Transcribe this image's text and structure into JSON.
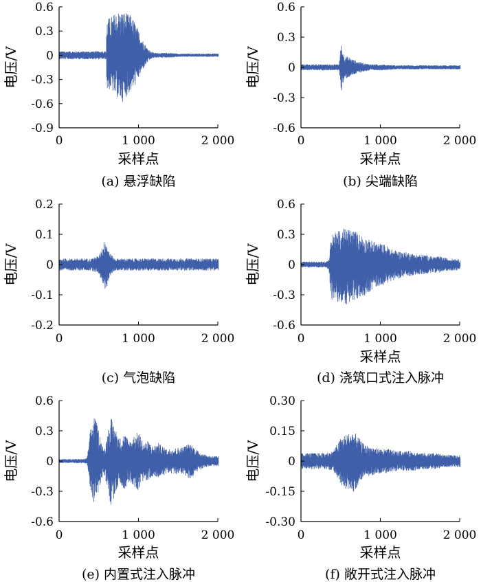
{
  "chart_data": [
    {
      "id": "a",
      "type": "line",
      "caption": "(a)  悬浮缺陷",
      "xlabel": "采样点",
      "ylabel": "电压/V",
      "xlim": [
        0,
        2000
      ],
      "ylim": [
        -0.9,
        0.6
      ],
      "xticks": [
        0,
        1000,
        2000
      ],
      "xtick_labels": [
        "0",
        "1 000",
        "2 000"
      ],
      "yticks": [
        0.6,
        0.3,
        0,
        -0.3,
        -0.6,
        -0.9
      ],
      "ytick_labels": [
        "0.6",
        "0.3",
        "0",
        "-0.3",
        "-0.6",
        "-0.9"
      ],
      "color": "#3f5fa8",
      "series": [
        {
          "x": [
            0,
            100,
            200,
            300,
            400,
            500,
            590,
            600,
            650,
            700,
            750,
            800,
            850,
            900,
            950,
            1000,
            1050,
            1100,
            1150,
            1200,
            1300,
            1400,
            1500,
            1600,
            1700,
            1800,
            1900,
            2000
          ],
          "ymax": [
            0.05,
            0.05,
            0.05,
            0.05,
            0.05,
            0.05,
            0.05,
            0.45,
            0.48,
            0.52,
            0.55,
            0.54,
            0.52,
            0.5,
            0.42,
            0.3,
            0.2,
            0.1,
            0.05,
            0.03,
            0.03,
            0.03,
            0.02,
            0.02,
            0.02,
            0.02,
            0.02,
            0.02
          ],
          "ymin": [
            -0.05,
            -0.05,
            -0.05,
            -0.05,
            -0.05,
            -0.05,
            -0.05,
            -0.45,
            -0.42,
            -0.5,
            -0.55,
            -0.58,
            -0.5,
            -0.45,
            -0.38,
            -0.28,
            -0.18,
            -0.1,
            -0.05,
            -0.03,
            -0.03,
            -0.03,
            -0.02,
            -0.02,
            -0.02,
            -0.02,
            -0.02,
            -0.02
          ]
        }
      ]
    },
    {
      "id": "b",
      "type": "line",
      "caption": "(b)  尖端缺陷",
      "xlabel": "采样点",
      "ylabel": "电压/V",
      "xlim": [
        0,
        2000
      ],
      "ylim": [
        -0.6,
        0.6
      ],
      "xticks": [
        0,
        1000,
        2000
      ],
      "xtick_labels": [
        "0",
        "1 000",
        "2 000"
      ],
      "yticks": [
        0.6,
        0.3,
        0,
        -0.3,
        -0.6
      ],
      "ytick_labels": [
        "0.6",
        "0.3",
        "0",
        "-0.3",
        "-0.6"
      ],
      "color": "#3f5fa8",
      "series": [
        {
          "x": [
            0,
            100,
            200,
            300,
            400,
            480,
            500,
            520,
            550,
            600,
            650,
            700,
            750,
            800,
            900,
            1000,
            1200,
            1400,
            1600,
            1800,
            2000
          ],
          "ymax": [
            0.03,
            0.03,
            0.03,
            0.03,
            0.03,
            0.03,
            0.24,
            0.17,
            0.12,
            0.1,
            0.08,
            0.06,
            0.05,
            0.04,
            0.03,
            0.03,
            0.02,
            0.02,
            0.02,
            0.02,
            0.02
          ],
          "ymin": [
            -0.03,
            -0.03,
            -0.03,
            -0.03,
            -0.03,
            -0.03,
            -0.26,
            -0.18,
            -0.12,
            -0.1,
            -0.08,
            -0.06,
            -0.05,
            -0.04,
            -0.03,
            -0.03,
            -0.02,
            -0.02,
            -0.02,
            -0.02,
            -0.02
          ]
        }
      ]
    },
    {
      "id": "c",
      "type": "line",
      "caption": "(c)  气泡缺陷",
      "xlabel": "",
      "ylabel": "电压/V",
      "xlim": [
        0,
        2000
      ],
      "ylim": [
        -0.2,
        0.2
      ],
      "xticks": [
        0,
        1000,
        2000
      ],
      "xtick_labels": [
        "0",
        "1 000",
        "2 000"
      ],
      "yticks": [
        0.2,
        0.1,
        0,
        -0.1,
        -0.2
      ],
      "ytick_labels": [
        "0.2",
        "0.1",
        "0",
        "-0.1",
        "-0.2"
      ],
      "color": "#3f5fa8",
      "series": [
        {
          "x": [
            0,
            100,
            200,
            300,
            400,
            500,
            540,
            580,
            620,
            660,
            700,
            800,
            900,
            1000,
            1200,
            1400,
            1600,
            1800,
            2000
          ],
          "ymax": [
            0.02,
            0.02,
            0.02,
            0.02,
            0.02,
            0.03,
            0.06,
            0.09,
            0.05,
            0.03,
            0.02,
            0.02,
            0.02,
            0.02,
            0.02,
            0.02,
            0.02,
            0.02,
            0.02
          ],
          "ymin": [
            -0.02,
            -0.02,
            -0.02,
            -0.02,
            -0.02,
            -0.03,
            -0.06,
            -0.09,
            -0.05,
            -0.03,
            -0.02,
            -0.02,
            -0.02,
            -0.02,
            -0.02,
            -0.02,
            -0.02,
            -0.02,
            -0.02
          ]
        }
      ]
    },
    {
      "id": "d",
      "type": "line",
      "caption": "(d)  浇筑口式注入脉冲",
      "xlabel": "采样点",
      "ylabel": "电压/V",
      "xlim": [
        0,
        2000
      ],
      "ylim": [
        -0.6,
        0.6
      ],
      "xticks": [
        0,
        1000,
        2000
      ],
      "xtick_labels": [
        "0",
        "1 000",
        "2 000"
      ],
      "yticks": [
        0.6,
        0.3,
        0,
        -0.3,
        -0.6
      ],
      "ytick_labels": [
        "0.6",
        "0.3",
        "0",
        "-0.3",
        "-0.6"
      ],
      "color": "#3f5fa8",
      "series": [
        {
          "x": [
            0,
            100,
            200,
            300,
            350,
            380,
            450,
            550,
            650,
            750,
            850,
            950,
            1050,
            1150,
            1250,
            1350,
            1450,
            1550,
            1650,
            1750,
            1850,
            1950,
            2000
          ],
          "ymax": [
            0.03,
            0.03,
            0.03,
            0.03,
            0.05,
            0.3,
            0.33,
            0.36,
            0.35,
            0.3,
            0.25,
            0.22,
            0.2,
            0.15,
            0.13,
            0.12,
            0.1,
            0.1,
            0.08,
            0.08,
            0.06,
            0.06,
            0.05
          ],
          "ymin": [
            -0.03,
            -0.03,
            -0.03,
            -0.03,
            -0.05,
            -0.35,
            -0.38,
            -0.4,
            -0.38,
            -0.33,
            -0.28,
            -0.22,
            -0.2,
            -0.16,
            -0.13,
            -0.12,
            -0.1,
            -0.1,
            -0.08,
            -0.08,
            -0.06,
            -0.06,
            -0.05
          ]
        }
      ]
    },
    {
      "id": "e",
      "type": "line",
      "caption": "(e)  内置式注入脉冲",
      "xlabel": "采样点",
      "ylabel": "电压/V",
      "xlim": [
        0,
        2000
      ],
      "ylim": [
        -0.6,
        0.6
      ],
      "xticks": [
        0,
        1000,
        2000
      ],
      "xtick_labels": [
        "0",
        "1 000",
        "2 000"
      ],
      "yticks": [
        0.6,
        0.3,
        0,
        -0.3,
        -0.6
      ],
      "ytick_labels": [
        "0.6",
        "0.3",
        "0",
        "-0.3",
        "-0.6"
      ],
      "color": "#3f5fa8",
      "series": [
        {
          "x": [
            0,
            100,
            200,
            300,
            350,
            400,
            440,
            500,
            560,
            600,
            650,
            700,
            760,
            820,
            880,
            940,
            1000,
            1060,
            1120,
            1180,
            1250,
            1350,
            1450,
            1550,
            1650,
            1750,
            1850,
            1950,
            2000
          ],
          "ymax": [
            0.02,
            0.02,
            0.02,
            0.02,
            0.03,
            0.35,
            0.45,
            0.3,
            0.1,
            0.25,
            0.43,
            0.35,
            0.22,
            0.28,
            0.2,
            0.25,
            0.3,
            0.18,
            0.2,
            0.15,
            0.18,
            0.12,
            0.13,
            0.14,
            0.18,
            0.1,
            0.06,
            0.05,
            0.05
          ],
          "ymin": [
            -0.02,
            -0.02,
            -0.02,
            -0.02,
            -0.03,
            -0.35,
            -0.42,
            -0.3,
            -0.1,
            -0.25,
            -0.45,
            -0.35,
            -0.22,
            -0.28,
            -0.2,
            -0.25,
            -0.3,
            -0.18,
            -0.2,
            -0.15,
            -0.18,
            -0.12,
            -0.13,
            -0.14,
            -0.18,
            -0.1,
            -0.06,
            -0.05,
            -0.05
          ]
        }
      ]
    },
    {
      "id": "f",
      "type": "line",
      "caption": "(f)  敞开式注入脉冲",
      "xlabel": "采样点",
      "ylabel": "电压/V",
      "xlim": [
        0,
        2000
      ],
      "ylim": [
        -0.3,
        0.3
      ],
      "xticks": [
        0,
        1000,
        2000
      ],
      "xtick_labels": [
        "0",
        "1 000",
        "2 000"
      ],
      "yticks": [
        0.3,
        0.15,
        0,
        -0.15,
        -0.3
      ],
      "ytick_labels": [
        "0.30",
        "0.15",
        "0",
        "-0.15",
        "-0.30"
      ],
      "color": "#3f5fa8",
      "series": [
        {
          "x": [
            0,
            100,
            200,
            300,
            400,
            450,
            500,
            550,
            600,
            650,
            700,
            750,
            800,
            900,
            1000,
            1100,
            1200,
            1300,
            1400,
            1500,
            1600,
            1700,
            1800,
            1900,
            2000
          ],
          "ymax": [
            0.04,
            0.04,
            0.04,
            0.04,
            0.05,
            0.08,
            0.12,
            0.13,
            0.14,
            0.15,
            0.13,
            0.1,
            0.08,
            0.07,
            0.06,
            0.06,
            0.05,
            0.05,
            0.05,
            0.04,
            0.04,
            0.04,
            0.03,
            0.03,
            0.03
          ],
          "ymin": [
            -0.04,
            -0.04,
            -0.04,
            -0.04,
            -0.05,
            -0.08,
            -0.12,
            -0.14,
            -0.15,
            -0.16,
            -0.13,
            -0.1,
            -0.08,
            -0.07,
            -0.06,
            -0.06,
            -0.05,
            -0.05,
            -0.05,
            -0.04,
            -0.04,
            -0.04,
            -0.03,
            -0.03,
            -0.03
          ]
        }
      ]
    }
  ]
}
